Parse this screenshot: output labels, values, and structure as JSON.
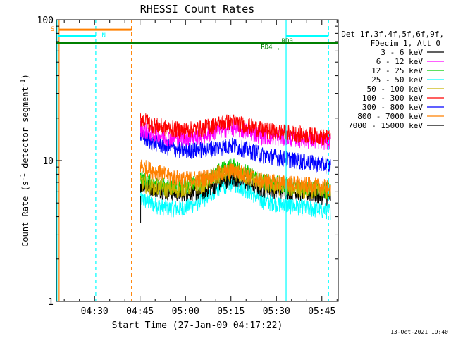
{
  "chart_data": {
    "type": "line",
    "title": "RHESSI Count Rates",
    "xlabel": "Start Time (27-Jan-09 04:17:22)",
    "ylabel_main": "Count Rate (s",
    "ylabel_sup1": "-1",
    "ylabel_mid": " detector segment",
    "ylabel_sup2": "-1",
    "ylabel_end": ")",
    "yscale": "log",
    "ylim": [
      1,
      100
    ],
    "xlim_minutes": [
      0,
      93
    ],
    "x_ticks": [
      {
        "label": "04:30",
        "min": 12.6
      },
      {
        "label": "04:45",
        "min": 27.6
      },
      {
        "label": "05:00",
        "min": 42.6
      },
      {
        "label": "05:15",
        "min": 57.6
      },
      {
        "label": "05:30",
        "min": 72.6
      },
      {
        "label": "05:45",
        "min": 87.6
      }
    ],
    "y_ticks": [
      {
        "label": "1",
        "value": 1
      },
      {
        "label": "10",
        "value": 10
      },
      {
        "label": "100",
        "value": 100
      }
    ],
    "legend_header": [
      "Det 1f,3f,4f,5f,6f,9f,",
      "FDecim 1, Att 0"
    ],
    "series": [
      {
        "name": "3 - 6 keV",
        "color": "#000000",
        "x": [
          27.6,
          32,
          37,
          42,
          48,
          54,
          58,
          63,
          68,
          74,
          80,
          86,
          90.5
        ],
        "y": [
          6.8,
          6.4,
          6.0,
          5.9,
          6.0,
          7.0,
          7.6,
          7.0,
          6.3,
          6.2,
          6.0,
          5.7,
          5.5
        ]
      },
      {
        "name": "6 - 12 keV",
        "color": "#ff00ff",
        "x": [
          27.6,
          32,
          37,
          42,
          48,
          54,
          58,
          63,
          68,
          74,
          80,
          86,
          90.5
        ],
        "y": [
          17.0,
          15.5,
          14.5,
          14.5,
          15.0,
          16.5,
          17.0,
          16.2,
          15.0,
          14.6,
          14.3,
          13.9,
          13.7
        ]
      },
      {
        "name": "12 - 25 keV",
        "color": "#00cc00",
        "x": [
          27.6,
          32,
          37,
          42,
          48,
          54,
          58,
          63,
          68,
          74,
          80,
          86,
          90.5
        ],
        "y": [
          7.5,
          6.9,
          6.5,
          6.6,
          7.0,
          8.5,
          9.2,
          8.2,
          7.2,
          6.8,
          6.5,
          6.3,
          6.2
        ]
      },
      {
        "name": "25 - 50 keV",
        "color": "#00ffff",
        "x": [
          27.6,
          32,
          37,
          42,
          48,
          54,
          58,
          63,
          68,
          74,
          80,
          86,
          90.5
        ],
        "y": [
          5.4,
          4.9,
          4.6,
          4.6,
          5.2,
          6.5,
          7.0,
          6.2,
          5.2,
          4.9,
          4.7,
          4.5,
          4.4
        ]
      },
      {
        "name": "50 - 100 keV",
        "color": "#c8b400",
        "x": [
          27.6,
          32,
          37,
          42,
          48,
          54,
          58,
          63,
          68,
          74,
          80,
          86,
          90.5
        ],
        "y": [
          7.0,
          6.5,
          6.2,
          6.3,
          6.7,
          7.8,
          8.4,
          7.6,
          6.8,
          6.5,
          6.3,
          6.1,
          6.0
        ]
      },
      {
        "name": "100 - 300 keV",
        "color": "#ff0000",
        "x": [
          27.6,
          32,
          37,
          42,
          48,
          54,
          58,
          63,
          68,
          74,
          80,
          86,
          90.5
        ],
        "y": [
          20.0,
          18.0,
          17.0,
          16.5,
          17.0,
          18.5,
          19.0,
          17.8,
          16.5,
          16.0,
          15.5,
          15.0,
          14.5
        ]
      },
      {
        "name": "300 - 800 keV",
        "color": "#0000ff",
        "x": [
          27.6,
          32,
          37,
          42,
          48,
          54,
          58,
          63,
          68,
          74,
          80,
          86,
          90.5
        ],
        "y": [
          15.0,
          13.5,
          12.5,
          11.8,
          12.0,
          12.5,
          12.8,
          12.0,
          11.0,
          10.5,
          10.0,
          9.5,
          9.2
        ]
      },
      {
        "name": "800 - 7000 keV",
        "color": "#ff8000",
        "x": [
          27.6,
          32,
          37,
          42,
          48,
          54,
          58,
          63,
          68,
          74,
          80,
          86,
          90.5
        ],
        "y": [
          9.2,
          8.5,
          7.8,
          7.4,
          7.5,
          8.2,
          8.6,
          7.9,
          7.2,
          7.0,
          6.8,
          6.6,
          6.4
        ]
      },
      {
        "name": "7000 - 15000 keV",
        "color": "#000000",
        "x": [],
        "y": []
      }
    ],
    "annotations": [
      {
        "text": "S",
        "color": "#ff8000"
      },
      {
        "text": "N",
        "color": "#00ffff"
      },
      {
        "text": "RD4",
        "color": "#008000"
      },
      {
        "text": "RD0",
        "color": "#008000"
      }
    ],
    "timestamp": "13-Oct-2021 19:40"
  }
}
